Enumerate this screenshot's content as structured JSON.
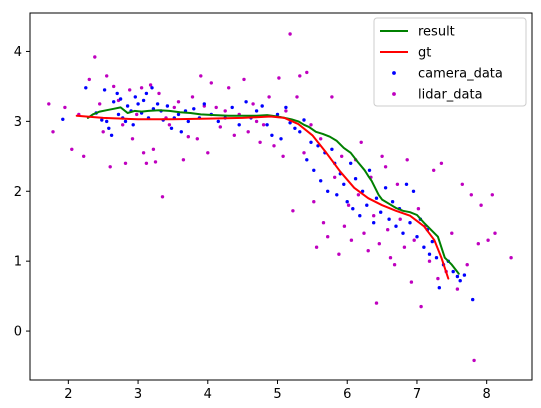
{
  "chart_data": {
    "type": "line",
    "title": "",
    "xlabel": "",
    "ylabel": "",
    "xlim": [
      1.45,
      8.65
    ],
    "ylim": [
      -0.7,
      4.55
    ],
    "x_ticks": [
      "2",
      "3",
      "4",
      "5",
      "6",
      "7",
      "8"
    ],
    "y_ticks": [
      "0",
      "1",
      "2",
      "3",
      "4"
    ],
    "grid": false,
    "legend_position": "top-right",
    "series": [
      {
        "name": "result",
        "type": "line",
        "color": "#008000",
        "points": [
          [
            2.28,
            3.05
          ],
          [
            2.35,
            3.1
          ],
          [
            2.45,
            3.14
          ],
          [
            2.55,
            3.16
          ],
          [
            2.65,
            3.18
          ],
          [
            2.75,
            3.2
          ],
          [
            2.85,
            3.12
          ],
          [
            2.95,
            3.15
          ],
          [
            3.05,
            3.14
          ],
          [
            3.15,
            3.15
          ],
          [
            3.3,
            3.16
          ],
          [
            3.45,
            3.15
          ],
          [
            3.6,
            3.13
          ],
          [
            3.75,
            3.12
          ],
          [
            3.9,
            3.1
          ],
          [
            4.1,
            3.09
          ],
          [
            4.3,
            3.08
          ],
          [
            4.5,
            3.08
          ],
          [
            4.7,
            3.08
          ],
          [
            4.85,
            3.09
          ],
          [
            5.0,
            3.07
          ],
          [
            5.1,
            3.05
          ],
          [
            5.2,
            3.03
          ],
          [
            5.3,
            3.0
          ],
          [
            5.38,
            2.95
          ],
          [
            5.45,
            2.92
          ],
          [
            5.55,
            2.85
          ],
          [
            5.65,
            2.82
          ],
          [
            5.75,
            2.78
          ],
          [
            5.85,
            2.72
          ],
          [
            5.95,
            2.62
          ],
          [
            6.05,
            2.55
          ],
          [
            6.15,
            2.42
          ],
          [
            6.25,
            2.3
          ],
          [
            6.3,
            2.22
          ],
          [
            6.35,
            2.15
          ],
          [
            6.4,
            2.05
          ],
          [
            6.45,
            1.95
          ],
          [
            6.5,
            1.88
          ],
          [
            6.6,
            1.82
          ],
          [
            6.7,
            1.76
          ],
          [
            6.8,
            1.72
          ],
          [
            6.9,
            1.7
          ],
          [
            7.0,
            1.66
          ],
          [
            7.1,
            1.55
          ],
          [
            7.2,
            1.45
          ],
          [
            7.3,
            1.35
          ],
          [
            7.4,
            1.05
          ],
          [
            7.5,
            0.95
          ],
          [
            7.6,
            0.82
          ]
        ]
      },
      {
        "name": "gt",
        "type": "line",
        "color": "#ff0000",
        "points": [
          [
            2.12,
            3.08
          ],
          [
            2.5,
            3.05
          ],
          [
            3.0,
            3.03
          ],
          [
            3.5,
            3.03
          ],
          [
            4.0,
            3.04
          ],
          [
            4.5,
            3.05
          ],
          [
            4.9,
            3.07
          ],
          [
            5.1,
            3.05
          ],
          [
            5.3,
            2.96
          ],
          [
            5.5,
            2.8
          ],
          [
            5.7,
            2.55
          ],
          [
            5.9,
            2.28
          ],
          [
            6.1,
            2.05
          ],
          [
            6.3,
            1.9
          ],
          [
            6.5,
            1.8
          ],
          [
            6.7,
            1.72
          ],
          [
            6.9,
            1.65
          ],
          [
            7.1,
            1.5
          ],
          [
            7.25,
            1.3
          ],
          [
            7.35,
            1.05
          ],
          [
            7.45,
            0.75
          ]
        ]
      },
      {
        "name": "camera_data",
        "type": "scatter",
        "color": "#0000ff",
        "points": [
          [
            1.92,
            3.03
          ],
          [
            2.25,
            3.48
          ],
          [
            2.4,
            3.12
          ],
          [
            2.48,
            3.02
          ],
          [
            2.52,
            3.45
          ],
          [
            2.55,
            3.0
          ],
          [
            2.58,
            2.9
          ],
          [
            2.62,
            2.8
          ],
          [
            2.65,
            3.28
          ],
          [
            2.7,
            3.4
          ],
          [
            2.72,
            3.1
          ],
          [
            2.75,
            3.32
          ],
          [
            2.78,
            3.05
          ],
          [
            2.82,
            3.0
          ],
          [
            2.85,
            3.22
          ],
          [
            2.9,
            3.15
          ],
          [
            2.93,
            2.95
          ],
          [
            2.96,
            3.35
          ],
          [
            3.0,
            3.25
          ],
          [
            3.05,
            3.12
          ],
          [
            3.08,
            3.3
          ],
          [
            3.12,
            3.4
          ],
          [
            3.15,
            3.05
          ],
          [
            3.2,
            3.48
          ],
          [
            3.22,
            3.18
          ],
          [
            3.28,
            3.25
          ],
          [
            3.33,
            3.15
          ],
          [
            3.36,
            3.02
          ],
          [
            3.42,
            3.22
          ],
          [
            3.48,
            2.9
          ],
          [
            3.52,
            3.05
          ],
          [
            3.58,
            3.1
          ],
          [
            3.62,
            2.85
          ],
          [
            3.68,
            3.15
          ],
          [
            3.72,
            3.0
          ],
          [
            3.8,
            3.18
          ],
          [
            3.88,
            3.05
          ],
          [
            3.95,
            3.25
          ],
          [
            4.05,
            3.1
          ],
          [
            4.15,
            3.0
          ],
          [
            4.25,
            3.05
          ],
          [
            4.35,
            3.2
          ],
          [
            4.45,
            2.95
          ],
          [
            4.55,
            3.28
          ],
          [
            4.62,
            3.05
          ],
          [
            4.7,
            3.15
          ],
          [
            4.78,
            3.22
          ],
          [
            4.85,
            2.95
          ],
          [
            4.92,
            2.8
          ],
          [
            5.0,
            3.1
          ],
          [
            5.05,
            2.75
          ],
          [
            5.12,
            3.2
          ],
          [
            5.18,
            2.98
          ],
          [
            5.25,
            2.9
          ],
          [
            5.32,
            2.85
          ],
          [
            5.38,
            3.02
          ],
          [
            5.42,
            2.45
          ],
          [
            5.48,
            2.7
          ],
          [
            5.52,
            2.3
          ],
          [
            5.58,
            2.65
          ],
          [
            5.62,
            2.15
          ],
          [
            5.68,
            2.55
          ],
          [
            5.72,
            2.0
          ],
          [
            5.78,
            2.6
          ],
          [
            5.82,
            2.4
          ],
          [
            5.85,
            1.95
          ],
          [
            5.9,
            2.25
          ],
          [
            5.95,
            2.1
          ],
          [
            6.0,
            1.85
          ],
          [
            6.05,
            2.4
          ],
          [
            6.08,
            1.75
          ],
          [
            6.12,
            2.18
          ],
          [
            6.18,
            1.65
          ],
          [
            6.22,
            2.0
          ],
          [
            6.28,
            1.8
          ],
          [
            6.32,
            2.3
          ],
          [
            6.38,
            1.55
          ],
          [
            6.42,
            1.9
          ],
          [
            6.48,
            1.7
          ],
          [
            6.55,
            2.05
          ],
          [
            6.6,
            1.6
          ],
          [
            6.65,
            1.85
          ],
          [
            6.7,
            1.5
          ],
          [
            6.75,
            1.75
          ],
          [
            6.8,
            1.4
          ],
          [
            6.85,
            2.1
          ],
          [
            6.9,
            1.55
          ],
          [
            6.95,
            2.0
          ],
          [
            7.0,
            1.35
          ],
          [
            7.05,
            1.6
          ],
          [
            7.1,
            1.2
          ],
          [
            7.15,
            1.45
          ],
          [
            7.18,
            1.1
          ],
          [
            7.22,
            1.28
          ],
          [
            7.28,
            1.05
          ],
          [
            7.32,
            0.62
          ],
          [
            7.38,
            0.95
          ],
          [
            7.45,
            1.0
          ],
          [
            7.52,
            0.85
          ],
          [
            7.58,
            0.78
          ],
          [
            7.62,
            0.72
          ],
          [
            7.68,
            0.8
          ],
          [
            7.8,
            0.45
          ]
        ]
      },
      {
        "name": "lidar_data",
        "type": "scatter",
        "color": "#bf00bf",
        "points": [
          [
            1.72,
            3.25
          ],
          [
            1.78,
            2.85
          ],
          [
            1.95,
            3.2
          ],
          [
            2.05,
            2.6
          ],
          [
            2.15,
            3.1
          ],
          [
            2.22,
            2.5
          ],
          [
            2.3,
            3.6
          ],
          [
            2.38,
            3.92
          ],
          [
            2.45,
            3.25
          ],
          [
            2.5,
            2.85
          ],
          [
            2.55,
            3.65
          ],
          [
            2.6,
            2.35
          ],
          [
            2.65,
            3.5
          ],
          [
            2.72,
            3.3
          ],
          [
            2.78,
            2.95
          ],
          [
            2.82,
            2.4
          ],
          [
            2.88,
            3.45
          ],
          [
            2.92,
            2.75
          ],
          [
            2.98,
            3.1
          ],
          [
            3.05,
            3.48
          ],
          [
            3.08,
            2.55
          ],
          [
            3.12,
            2.4
          ],
          [
            3.18,
            3.52
          ],
          [
            3.22,
            2.6
          ],
          [
            3.25,
            2.42
          ],
          [
            3.3,
            3.4
          ],
          [
            3.35,
            1.92
          ],
          [
            3.4,
            3.05
          ],
          [
            3.45,
            2.95
          ],
          [
            3.52,
            3.2
          ],
          [
            3.58,
            3.28
          ],
          [
            3.65,
            2.45
          ],
          [
            3.72,
            2.78
          ],
          [
            3.78,
            3.35
          ],
          [
            3.85,
            2.75
          ],
          [
            3.9,
            3.65
          ],
          [
            3.95,
            3.22
          ],
          [
            4.0,
            2.55
          ],
          [
            4.05,
            3.55
          ],
          [
            4.12,
            3.2
          ],
          [
            4.18,
            2.92
          ],
          [
            4.25,
            3.15
          ],
          [
            4.3,
            3.48
          ],
          [
            4.38,
            2.8
          ],
          [
            4.45,
            3.1
          ],
          [
            4.52,
            3.6
          ],
          [
            4.58,
            2.85
          ],
          [
            4.65,
            3.25
          ],
          [
            4.7,
            3.0
          ],
          [
            4.75,
            2.7
          ],
          [
            4.8,
            2.95
          ],
          [
            4.88,
            3.35
          ],
          [
            4.95,
            2.65
          ],
          [
            5.02,
            3.62
          ],
          [
            5.08,
            2.5
          ],
          [
            5.12,
            3.15
          ],
          [
            5.18,
            4.25
          ],
          [
            5.22,
            1.72
          ],
          [
            5.28,
            3.35
          ],
          [
            5.32,
            3.65
          ],
          [
            5.38,
            2.55
          ],
          [
            5.42,
            3.7
          ],
          [
            5.48,
            2.95
          ],
          [
            5.52,
            1.85
          ],
          [
            5.56,
            1.2
          ],
          [
            5.62,
            2.75
          ],
          [
            5.66,
            1.55
          ],
          [
            5.72,
            1.35
          ],
          [
            5.78,
            3.35
          ],
          [
            5.82,
            2.2
          ],
          [
            5.88,
            1.1
          ],
          [
            5.92,
            2.5
          ],
          [
            5.96,
            1.5
          ],
          [
            6.02,
            1.8
          ],
          [
            6.06,
            1.3
          ],
          [
            6.12,
            2.45
          ],
          [
            6.16,
            1.95
          ],
          [
            6.2,
            2.7
          ],
          [
            6.24,
            1.4
          ],
          [
            6.3,
            1.15
          ],
          [
            6.34,
            2.2
          ],
          [
            6.38,
            1.65
          ],
          [
            6.42,
            0.4
          ],
          [
            6.46,
            1.25
          ],
          [
            6.5,
            2.5
          ],
          [
            6.55,
            2.35
          ],
          [
            6.58,
            1.45
          ],
          [
            6.62,
            1.05
          ],
          [
            6.68,
            0.95
          ],
          [
            6.72,
            2.1
          ],
          [
            6.76,
            1.6
          ],
          [
            6.82,
            1.2
          ],
          [
            6.86,
            2.45
          ],
          [
            6.92,
            0.7
          ],
          [
            6.96,
            1.3
          ],
          [
            7.02,
            1.75
          ],
          [
            7.06,
            0.35
          ],
          [
            7.12,
            1.5
          ],
          [
            7.18,
            1.0
          ],
          [
            7.24,
            2.3
          ],
          [
            7.3,
            0.75
          ],
          [
            7.35,
            2.4
          ],
          [
            7.42,
            0.85
          ],
          [
            7.5,
            1.4
          ],
          [
            7.58,
            0.6
          ],
          [
            7.65,
            2.1
          ],
          [
            7.72,
            0.95
          ],
          [
            7.78,
            1.95
          ],
          [
            7.82,
            -0.42
          ],
          [
            7.88,
            1.25
          ],
          [
            7.92,
            1.8
          ],
          [
            8.02,
            1.3
          ],
          [
            8.08,
            1.95
          ],
          [
            8.12,
            1.4
          ],
          [
            8.35,
            1.05
          ]
        ]
      }
    ]
  }
}
